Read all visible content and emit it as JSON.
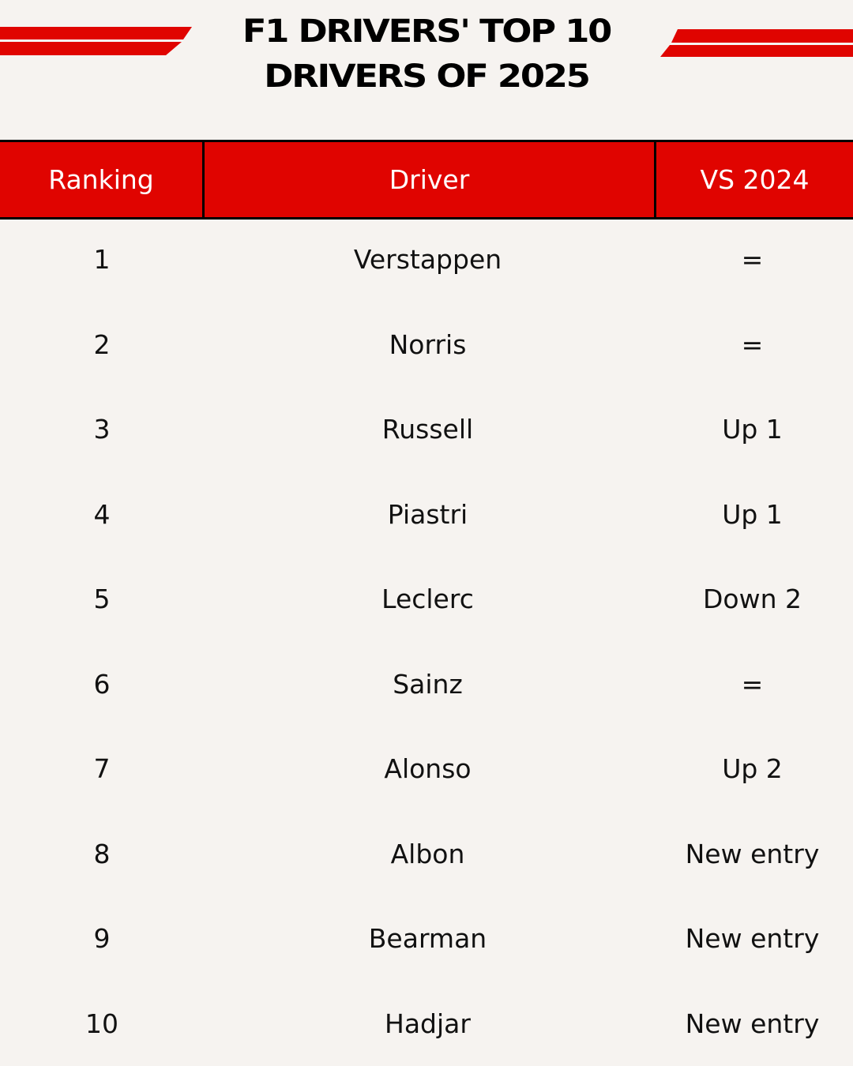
{
  "title": {
    "line1": "F1 DRIVERS' TOP 10",
    "line2": "DRIVERS OF 2025"
  },
  "colors": {
    "accent": "#e00400",
    "background": "#f6f3f0",
    "border": "#000000"
  },
  "table": {
    "headers": [
      "Ranking",
      "Driver",
      "VS 2024"
    ],
    "rows": [
      {
        "rank": "1",
        "driver": "Verstappen",
        "vs": "="
      },
      {
        "rank": "2",
        "driver": "Norris",
        "vs": "="
      },
      {
        "rank": "3",
        "driver": "Russell",
        "vs": "Up 1"
      },
      {
        "rank": "4",
        "driver": "Piastri",
        "vs": "Up 1"
      },
      {
        "rank": "5",
        "driver": "Leclerc",
        "vs": "Down 2"
      },
      {
        "rank": "6",
        "driver": "Sainz",
        "vs": "="
      },
      {
        "rank": "7",
        "driver": "Alonso",
        "vs": "Up 2"
      },
      {
        "rank": "8",
        "driver": "Albon",
        "vs": "New entry"
      },
      {
        "rank": "9",
        "driver": "Bearman",
        "vs": "New entry"
      },
      {
        "rank": "10",
        "driver": "Hadjar",
        "vs": "New entry"
      }
    ]
  }
}
